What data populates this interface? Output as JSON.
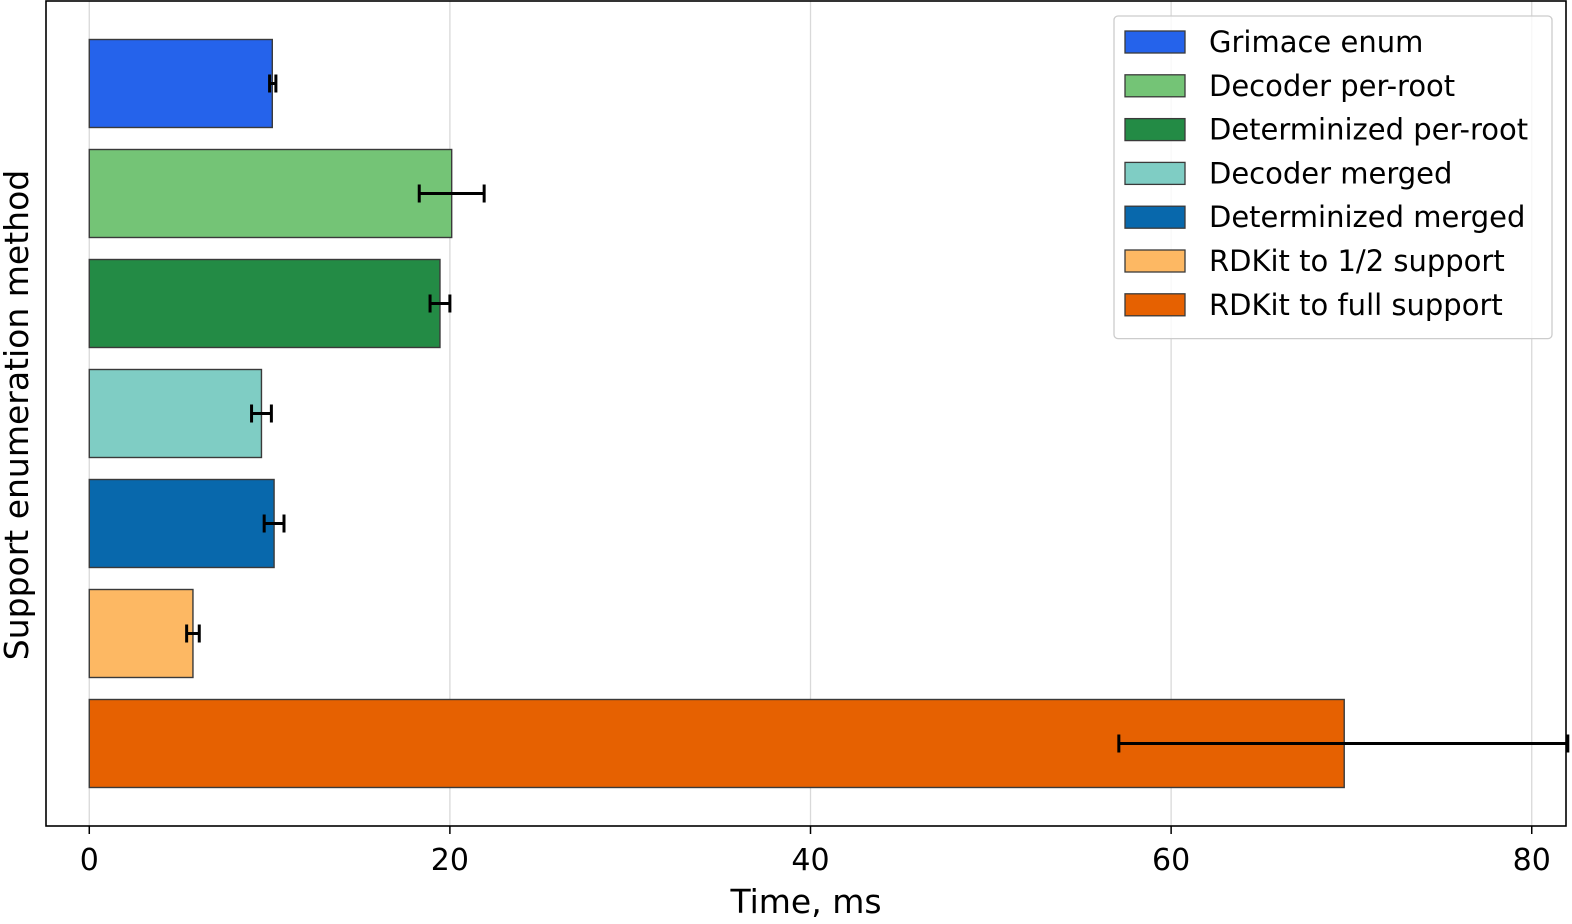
{
  "chart_data": {
    "type": "bar",
    "orientation": "horizontal",
    "xlabel": "Time, ms",
    "ylabel": "Support enumeration method",
    "xlim": [
      -2.4,
      81.9
    ],
    "xticks": [
      0,
      20,
      40,
      60,
      80
    ],
    "grid": "vertical",
    "legend_position": "top-right",
    "series": [
      {
        "name": "Grimace enum",
        "value": 10.15,
        "err_low": 10.0,
        "err_high": 10.35,
        "color": "#2563eb"
      },
      {
        "name": "Decoder per-root",
        "value": 20.1,
        "err_low": 18.3,
        "err_high": 21.9,
        "color": "#74c476"
      },
      {
        "name": "Determinized per-root",
        "value": 19.45,
        "err_low": 18.9,
        "err_high": 20.0,
        "color": "#238b45"
      },
      {
        "name": "Decoder merged",
        "value": 9.55,
        "err_low": 9.0,
        "err_high": 10.1,
        "color": "#7fcdc4"
      },
      {
        "name": "Determinized merged",
        "value": 10.25,
        "err_low": 9.7,
        "err_high": 10.8,
        "color": "#0868ac"
      },
      {
        "name": "RDKit to 1/2 support",
        "value": 5.75,
        "err_low": 5.4,
        "err_high": 6.1,
        "color": "#fdb863"
      },
      {
        "name": "RDKit to full support",
        "value": 69.6,
        "err_low": 57.1,
        "err_high": 82.0,
        "color": "#e66101"
      }
    ]
  }
}
